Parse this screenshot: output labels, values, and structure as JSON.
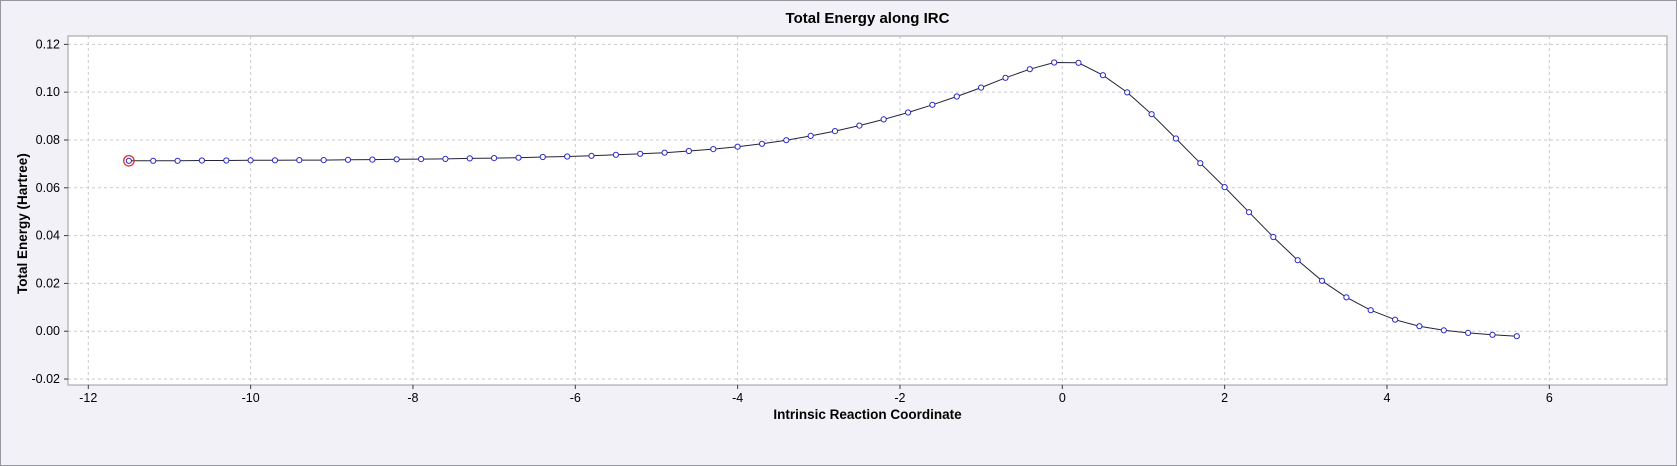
{
  "colors": {
    "window_bg": "#f1f1f7",
    "plot_bg": "#ffffff",
    "plot_border": "#9a9aa2",
    "tick": "#3a3a3a",
    "text": "#000000"
  },
  "chart_data": {
    "type": "line",
    "title": "Total Energy along IRC",
    "xlabel": "Intrinsic Reaction Coordinate",
    "ylabel": "Total Energy (Hartree)",
    "xlim": [
      -12.25,
      7.45
    ],
    "ylim": [
      -0.0225,
      0.1235
    ],
    "x_tick_values": [
      -12,
      -10,
      -8,
      -6,
      -4,
      -2,
      0,
      2,
      4,
      6
    ],
    "x_tick_labels": [
      "-12",
      "-10",
      "-8",
      "-6",
      "-4",
      "-2",
      "0",
      "2",
      "4",
      "6"
    ],
    "y_tick_values": [
      -0.02,
      0,
      0.02,
      0.04,
      0.06,
      0.08,
      0.1,
      0.12
    ],
    "y_tick_labels": [
      "-0.02",
      "0.00",
      "0.02",
      "0.04",
      "0.06",
      "0.08",
      "0.10",
      "0.12"
    ],
    "grid": {
      "show": true,
      "style": "dashed",
      "color": "#c9c9cf"
    },
    "legend": "none",
    "series": [
      {
        "name": "Total Energy",
        "line_color": "#23233a",
        "marker": "circle",
        "marker_color": "#2a2acc",
        "marker_fill": "#ffffff",
        "points": [
          [
            -11.5,
            0.0713
          ],
          [
            -11.2,
            0.0713
          ],
          [
            -10.9,
            0.0713
          ],
          [
            -10.6,
            0.0714
          ],
          [
            -10.3,
            0.0714
          ],
          [
            -10.0,
            0.0715
          ],
          [
            -9.7,
            0.0715
          ],
          [
            -9.4,
            0.0716
          ],
          [
            -9.1,
            0.0716
          ],
          [
            -8.8,
            0.0717
          ],
          [
            -8.5,
            0.0718
          ],
          [
            -8.2,
            0.0719
          ],
          [
            -7.9,
            0.072
          ],
          [
            -7.6,
            0.0721
          ],
          [
            -7.3,
            0.0723
          ],
          [
            -7.0,
            0.0724
          ],
          [
            -6.7,
            0.0726
          ],
          [
            -6.4,
            0.0729
          ],
          [
            -6.1,
            0.0731
          ],
          [
            -5.8,
            0.0734
          ],
          [
            -5.5,
            0.0738
          ],
          [
            -5.2,
            0.0742
          ],
          [
            -4.9,
            0.0747
          ],
          [
            -4.6,
            0.0754
          ],
          [
            -4.3,
            0.0762
          ],
          [
            -4.0,
            0.0772
          ],
          [
            -3.7,
            0.0784
          ],
          [
            -3.4,
            0.0799
          ],
          [
            -3.1,
            0.0817
          ],
          [
            -2.8,
            0.0837
          ],
          [
            -2.5,
            0.086
          ],
          [
            -2.2,
            0.0886
          ],
          [
            -1.9,
            0.0915
          ],
          [
            -1.6,
            0.0947
          ],
          [
            -1.3,
            0.0982
          ],
          [
            -1.0,
            0.1019
          ],
          [
            -0.7,
            0.106
          ],
          [
            -0.4,
            0.1096
          ],
          [
            -0.1,
            0.1124
          ],
          [
            0.2,
            0.1123
          ],
          [
            0.5,
            0.1071
          ],
          [
            0.8,
            0.0999
          ],
          [
            1.1,
            0.0908
          ],
          [
            1.4,
            0.0806
          ],
          [
            1.7,
            0.0703
          ],
          [
            2.0,
            0.0603
          ],
          [
            2.3,
            0.0498
          ],
          [
            2.6,
            0.0394
          ],
          [
            2.9,
            0.0297
          ],
          [
            3.2,
            0.0211
          ],
          [
            3.5,
            0.0142
          ],
          [
            3.8,
            0.0088
          ],
          [
            4.1,
            0.0048
          ],
          [
            4.4,
            0.0021
          ],
          [
            4.7,
            0.0004
          ],
          [
            5.0,
            -0.0007
          ],
          [
            5.3,
            -0.0015
          ],
          [
            5.6,
            -0.0021
          ]
        ]
      }
    ],
    "selected_point": {
      "series": 0,
      "index": 0,
      "ring_color": "#e03232"
    }
  }
}
